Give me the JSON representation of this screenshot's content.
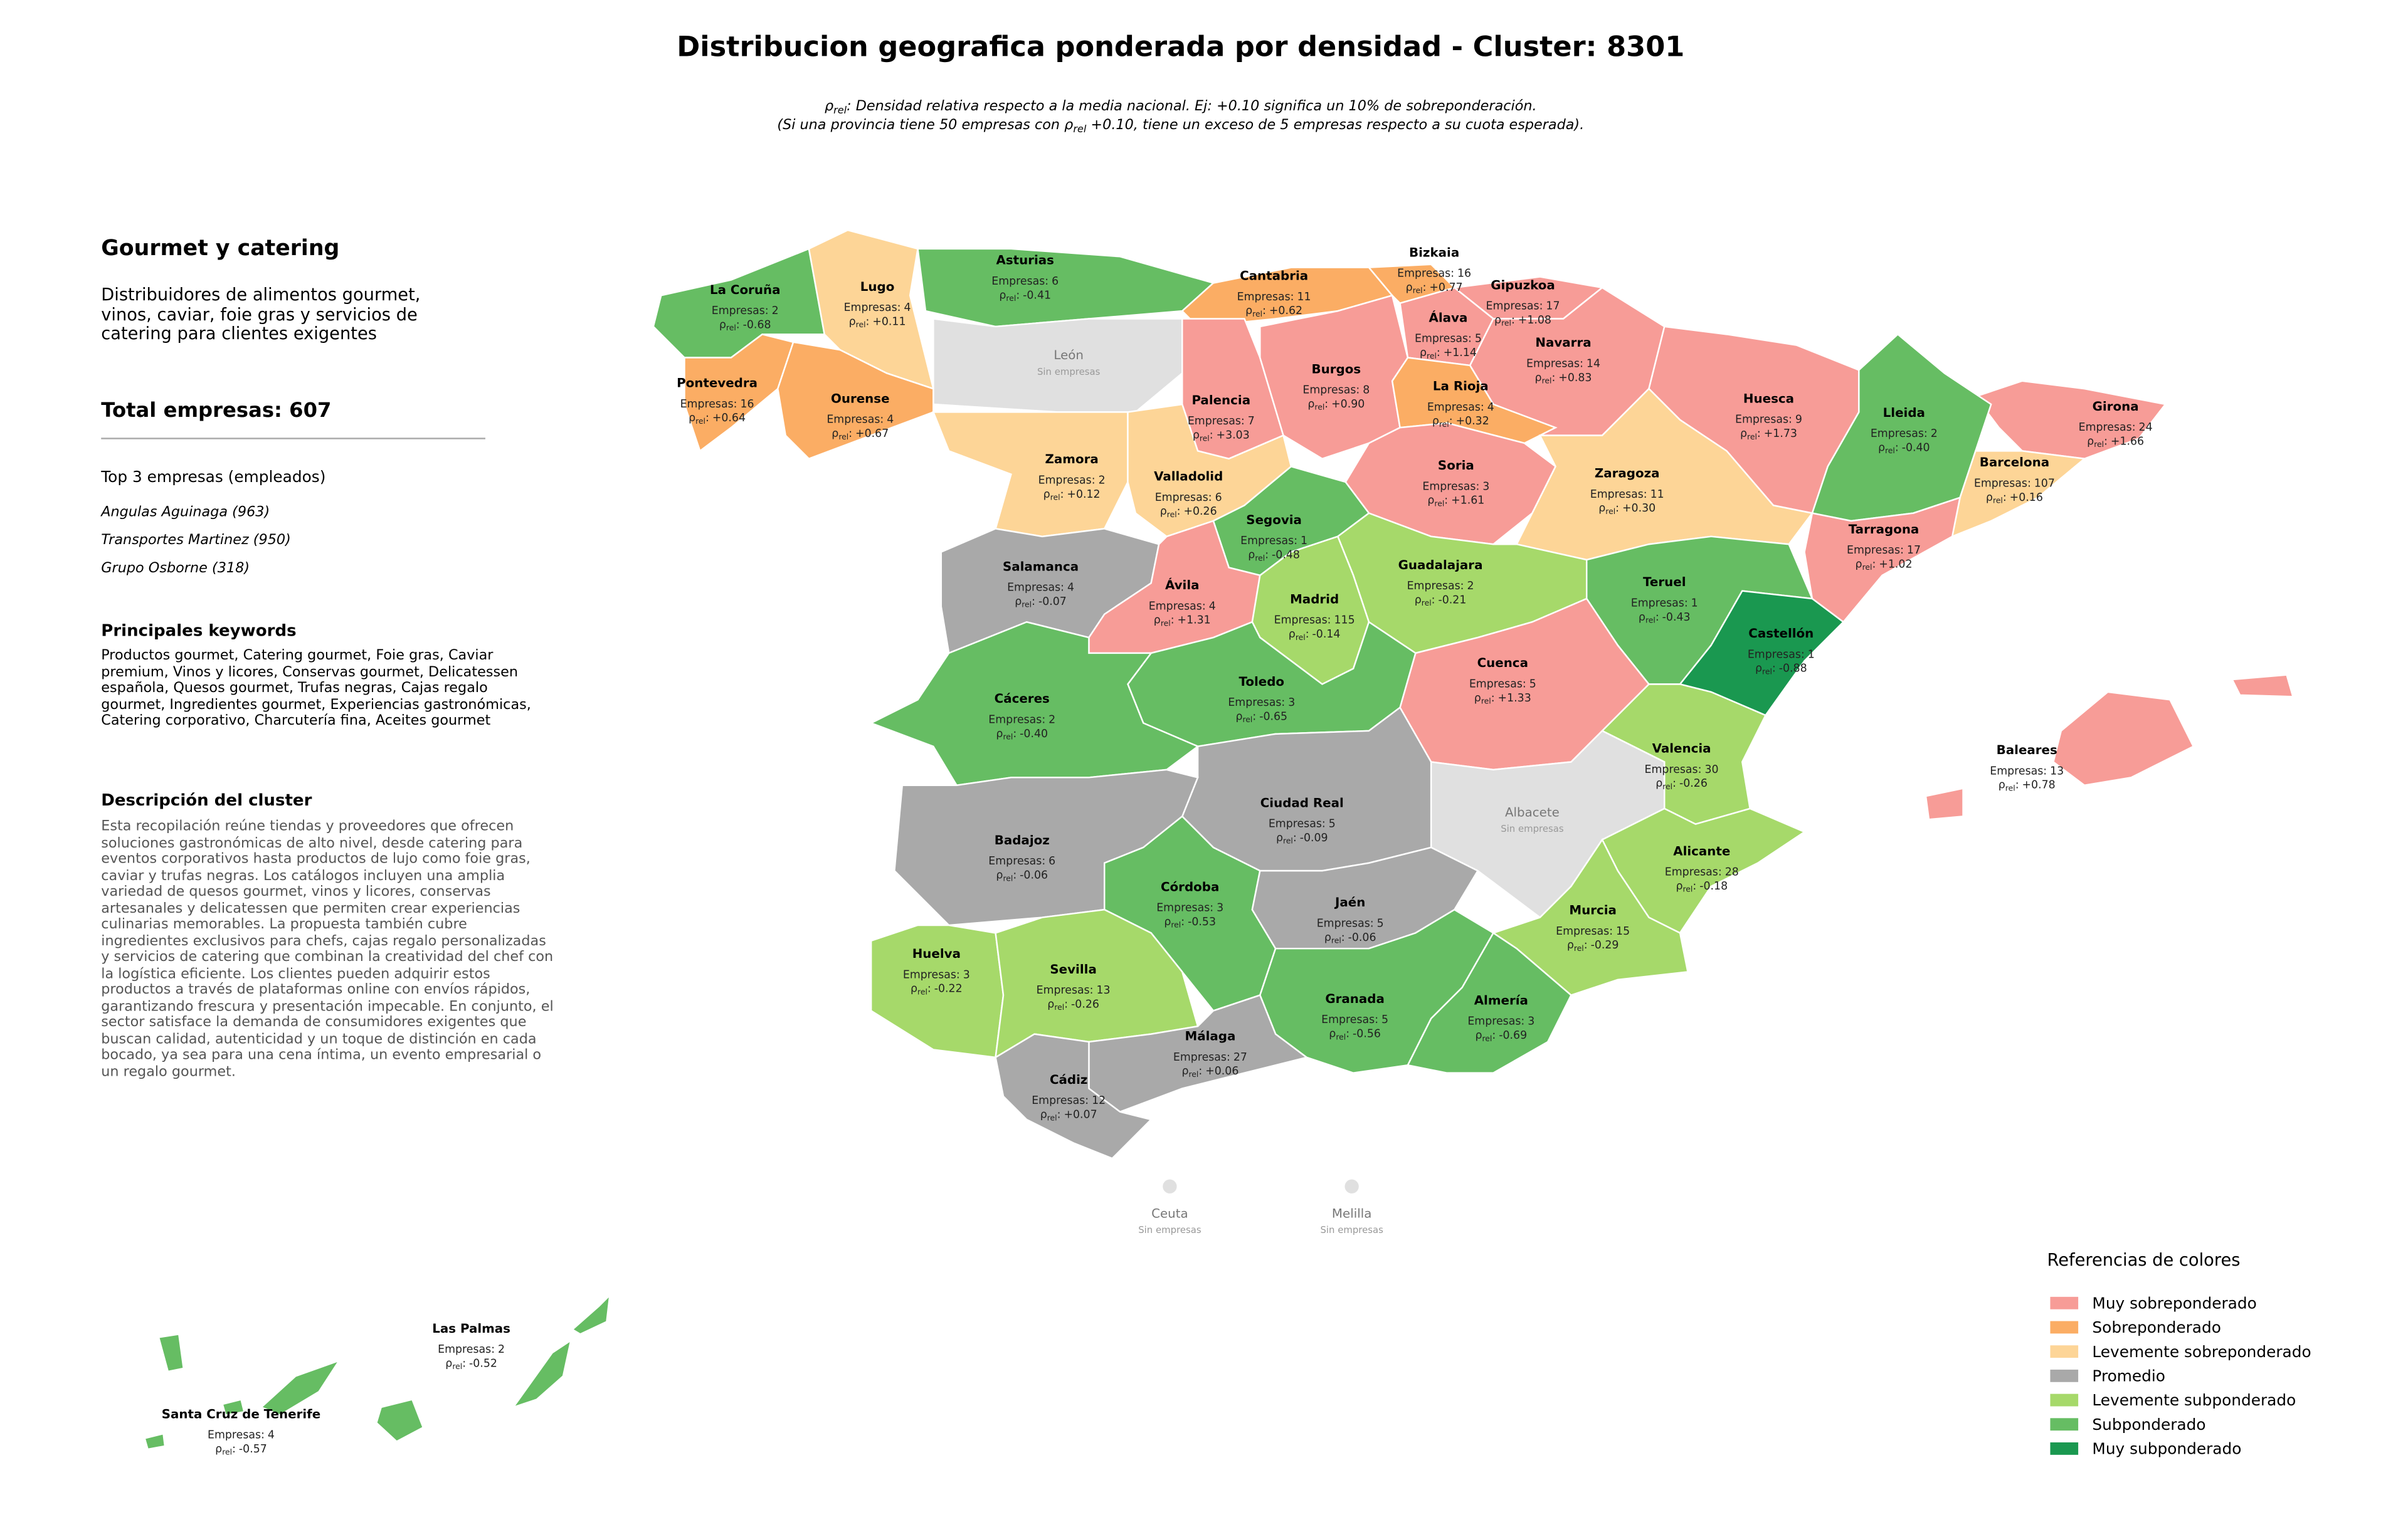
{
  "header": {
    "title": "Distribucion geografica ponderada por densidad - Cluster: 8301",
    "rho_symbol": "ρ",
    "rho_sub": "rel",
    "subtitle_1": ": Densidad relativa respecto a la media nacional. Ej: +0.10 significa un 10% de sobreponderación.",
    "subtitle_2_before": "(Si una provincia tiene 50 empresas con ",
    "subtitle_2_after": " +0.10, tiene un exceso de 5 empresas respecto a su cuota esperada)."
  },
  "sidebar": {
    "title": "Gourmet y catering",
    "summary": "Distribuidores de alimentos gourmet, vinos, caviar, foie gras y servicios de catering para clientes exigentes",
    "total": "Total empresas: 607",
    "top_title": "Top 3 empresas (empleados)",
    "top": [
      "Angulas Aguinaga (963)",
      "Transportes Martinez (950)",
      "Grupo Osborne (318)"
    ],
    "keywords_title": "Principales keywords",
    "keywords": "Productos gourmet, Catering gourmet, Foie gras, Caviar premium, Vinos y licores, Conservas gourmet, Delicatessen española, Quesos gourmet, Trufas negras, Cajas regalo gourmet, Ingredientes gourmet, Experiencias gastronómicas, Catering corporativo, Charcutería fina, Aceites gourmet",
    "description_title": "Descripción del cluster",
    "description": "Esta recopilación reúne tiendas y proveedores que ofrecen soluciones gastronómicas de alto nivel, desde catering para eventos corporativos hasta productos de lujo como foie gras, caviar y trufas negras. Los catálogos incluyen una amplia variedad de quesos gourmet, vinos y licores, conservas artesanales y delicatessen que permiten crear experiencias culinarias memorables. La propuesta también cubre ingredientes exclusivos para chefs, cajas regalo personalizadas y servicios de catering que combinan la creatividad del chef con la logística eficiente. Los clientes pueden adquirir estos productos a través de plataformas online con envíos rápidos, garantizando frescura y presentación impecable. En conjunto, el sector satisface la demanda de consumidores exigentes que buscan calidad, autenticidad y un toque de distinción en cada bocado, ya sea para una cena íntima, un evento empresarial o un regalo gourmet."
  },
  "map": {
    "companies_prefix": "Empresas:",
    "rho_separator": ":",
    "no_data_label": "Sin empresas",
    "provinces": [
      {
        "name": "La Coruña",
        "companies": 2,
        "rho": -0.68,
        "rho_label": "-0.68",
        "color": "#66bd63"
      },
      {
        "name": "Lugo",
        "companies": 4,
        "rho": 0.11,
        "rho_label": "+0.11",
        "color": "#fdd597"
      },
      {
        "name": "Asturias",
        "companies": 6,
        "rho": -0.41,
        "rho_label": "-0.41",
        "color": "#66bd63"
      },
      {
        "name": "Cantabria",
        "companies": 11,
        "rho": 0.62,
        "rho_label": "+0.62",
        "color": "#fbad64"
      },
      {
        "name": "Bizkaia",
        "companies": 16,
        "rho": 0.77,
        "rho_label": "+0.77",
        "color": "#fbad64"
      },
      {
        "name": "Gipuzkoa",
        "companies": 17,
        "rho": 1.08,
        "rho_label": "+1.08",
        "color": "#f79c97"
      },
      {
        "name": "Álava",
        "companies": 5,
        "rho": 1.14,
        "rho_label": "+1.14",
        "color": "#f79c97"
      },
      {
        "name": "Navarra",
        "companies": 14,
        "rho": 0.83,
        "rho_label": "+0.83",
        "color": "#f79c97"
      },
      {
        "name": "León",
        "color": "#e0e0e0"
      },
      {
        "name": "Pontevedra",
        "companies": 16,
        "rho": 0.64,
        "rho_label": "+0.64",
        "color": "#fbad64"
      },
      {
        "name": "Ourense",
        "companies": 4,
        "rho": 0.67,
        "rho_label": "+0.67",
        "color": "#fbad64"
      },
      {
        "name": "Palencia",
        "companies": 7,
        "rho": 3.03,
        "rho_label": "+3.03",
        "color": "#f79c97"
      },
      {
        "name": "Burgos",
        "companies": 8,
        "rho": 0.9,
        "rho_label": "+0.90",
        "color": "#f79c97"
      },
      {
        "name": "La Rioja",
        "companies": 4,
        "rho": 0.32,
        "rho_label": "+0.32",
        "color": "#fbad64"
      },
      {
        "name": "Huesca",
        "companies": 9,
        "rho": 1.73,
        "rho_label": "+1.73",
        "color": "#f79c97"
      },
      {
        "name": "Girona",
        "companies": 24,
        "rho": 1.66,
        "rho_label": "+1.66",
        "color": "#f79c97"
      },
      {
        "name": "Lleida",
        "companies": 2,
        "rho": -0.4,
        "rho_label": "-0.40",
        "color": "#66bd63"
      },
      {
        "name": "Zamora",
        "companies": 2,
        "rho": 0.12,
        "rho_label": "+0.12",
        "color": "#fdd597"
      },
      {
        "name": "Valladolid",
        "companies": 6,
        "rho": 0.26,
        "rho_label": "+0.26",
        "color": "#fdd597"
      },
      {
        "name": "Soria",
        "companies": 3,
        "rho": 1.61,
        "rho_label": "+1.61",
        "color": "#f79c97"
      },
      {
        "name": "Zaragoza",
        "companies": 11,
        "rho": 0.3,
        "rho_label": "+0.30",
        "color": "#fdd597"
      },
      {
        "name": "Barcelona",
        "companies": 107,
        "rho": 0.16,
        "rho_label": "+0.16",
        "color": "#fdd597"
      },
      {
        "name": "Segovia",
        "companies": 1,
        "rho": -0.48,
        "rho_label": "-0.48",
        "color": "#66bd63"
      },
      {
        "name": "Tarragona",
        "companies": 17,
        "rho": 1.02,
        "rho_label": "+1.02",
        "color": "#f79c97"
      },
      {
        "name": "Salamanca",
        "companies": 4,
        "rho": -0.07,
        "rho_label": "-0.07",
        "color": "#a9a9a9"
      },
      {
        "name": "Guadalajara",
        "companies": 2,
        "rho": -0.21,
        "rho_label": "-0.21",
        "color": "#a6d96a"
      },
      {
        "name": "Ávila",
        "companies": 4,
        "rho": 1.31,
        "rho_label": "+1.31",
        "color": "#f79c97"
      },
      {
        "name": "Madrid",
        "companies": 115,
        "rho": -0.14,
        "rho_label": "-0.14",
        "color": "#a6d96a"
      },
      {
        "name": "Teruel",
        "companies": 1,
        "rho": -0.43,
        "rho_label": "-0.43",
        "color": "#66bd63"
      },
      {
        "name": "Castellón",
        "companies": 1,
        "rho": -0.88,
        "rho_label": "-0.88",
        "color": "#1a9850"
      },
      {
        "name": "Cuenca",
        "companies": 5,
        "rho": 1.33,
        "rho_label": "+1.33",
        "color": "#f79c97"
      },
      {
        "name": "Toledo",
        "companies": 3,
        "rho": -0.65,
        "rho_label": "-0.65",
        "color": "#66bd63"
      },
      {
        "name": "Cáceres",
        "companies": 2,
        "rho": -0.4,
        "rho_label": "-0.40",
        "color": "#66bd63"
      },
      {
        "name": "Baleares",
        "companies": 13,
        "rho": 0.78,
        "rho_label": "+0.78",
        "color": "#f79c97"
      },
      {
        "name": "Valencia",
        "companies": 30,
        "rho": -0.26,
        "rho_label": "-0.26",
        "color": "#a6d96a"
      },
      {
        "name": "Ciudad Real",
        "companies": 5,
        "rho": -0.09,
        "rho_label": "-0.09",
        "color": "#a9a9a9"
      },
      {
        "name": "Albacete",
        "color": "#e0e0e0"
      },
      {
        "name": "Badajoz",
        "companies": 6,
        "rho": -0.06,
        "rho_label": "-0.06",
        "color": "#a9a9a9"
      },
      {
        "name": "Alicante",
        "companies": 28,
        "rho": -0.18,
        "rho_label": "-0.18",
        "color": "#a6d96a"
      },
      {
        "name": "Córdoba",
        "companies": 3,
        "rho": -0.53,
        "rho_label": "-0.53",
        "color": "#66bd63"
      },
      {
        "name": "Jaén",
        "companies": 5,
        "rho": -0.06,
        "rho_label": "-0.06",
        "color": "#a9a9a9"
      },
      {
        "name": "Murcia",
        "companies": 15,
        "rho": -0.29,
        "rho_label": "-0.29",
        "color": "#a6d96a"
      },
      {
        "name": "Huelva",
        "companies": 3,
        "rho": -0.22,
        "rho_label": "-0.22",
        "color": "#a6d96a"
      },
      {
        "name": "Sevilla",
        "companies": 13,
        "rho": -0.26,
        "rho_label": "-0.26",
        "color": "#a6d96a"
      },
      {
        "name": "Granada",
        "companies": 5,
        "rho": -0.56,
        "rho_label": "-0.56",
        "color": "#66bd63"
      },
      {
        "name": "Almería",
        "companies": 3,
        "rho": -0.69,
        "rho_label": "-0.69",
        "color": "#66bd63"
      },
      {
        "name": "Málaga",
        "companies": 27,
        "rho": 0.06,
        "rho_label": "+0.06",
        "color": "#a9a9a9"
      },
      {
        "name": "Cádiz",
        "companies": 12,
        "rho": 0.07,
        "rho_label": "+0.07",
        "color": "#a9a9a9"
      },
      {
        "name": "Ceuta",
        "color": "#e0e0e0"
      },
      {
        "name": "Melilla",
        "color": "#e0e0e0"
      },
      {
        "name": "Las Palmas",
        "companies": 2,
        "rho": -0.52,
        "rho_label": "-0.52",
        "color": "#66bd63"
      },
      {
        "name": "Santa Cruz de Tenerife",
        "companies": 4,
        "rho": -0.57,
        "rho_label": "-0.57",
        "color": "#66bd63"
      }
    ]
  },
  "legend": {
    "title": "Referencias de colores",
    "items": [
      {
        "label": "Muy sobreponderado",
        "color": "#f79c97"
      },
      {
        "label": "Sobreponderado",
        "color": "#fbad64"
      },
      {
        "label": "Levemente sobreponderado",
        "color": "#fdd597"
      },
      {
        "label": "Promedio",
        "color": "#a9a9a9"
      },
      {
        "label": "Levemente subponderado",
        "color": "#a6d96a"
      },
      {
        "label": "Subponderado",
        "color": "#66bd63"
      },
      {
        "label": "Muy subponderado",
        "color": "#1a9850"
      }
    ]
  }
}
